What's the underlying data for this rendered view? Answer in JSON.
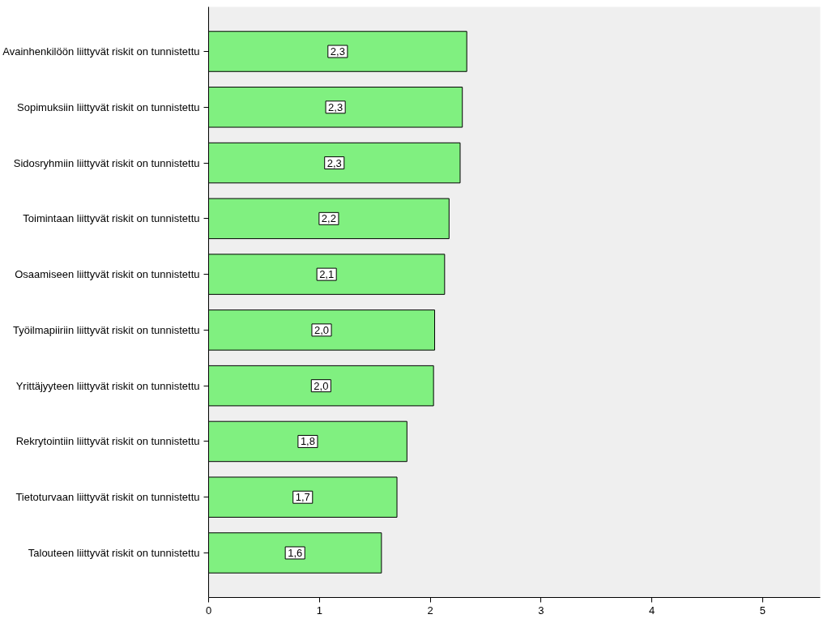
{
  "chart_data": {
    "type": "bar",
    "orientation": "horizontal",
    "categories": [
      "Avainhenkilöön liittyvät riskit on tunnistettu",
      "Sopimuksiin liittyvät riskit on tunnistettu",
      "Sidosryhmiin liittyvät riskit on tunnistettu",
      "Toimintaan liittyvät riskit on tunnistettu",
      "Osaamiseen liittyvät riskit on tunnistettu",
      "Työilmapiiriin liittyvät riskit on tunnistettu",
      "Yrittäjyyteen liittyvät riskit on tunnistettu",
      "Rekrytointiin liittyvät riskit on tunnistettu",
      "Tietoturvaan liittyvät riskit on tunnistettu",
      "Talouteen liittyvät riskit on tunnistettu"
    ],
    "values": [
      2.33,
      2.29,
      2.27,
      2.17,
      2.13,
      2.04,
      2.03,
      1.79,
      1.7,
      1.56
    ],
    "value_labels": [
      "2,3",
      "2,3",
      "2,3",
      "2,2",
      "2,1",
      "2,0",
      "2,0",
      "1,8",
      "1,7",
      "1,6"
    ],
    "color": "#80f080",
    "xlim": [
      0,
      5.52
    ],
    "xticks": [
      0,
      1,
      2,
      3,
      4,
      5
    ],
    "grid": false
  }
}
